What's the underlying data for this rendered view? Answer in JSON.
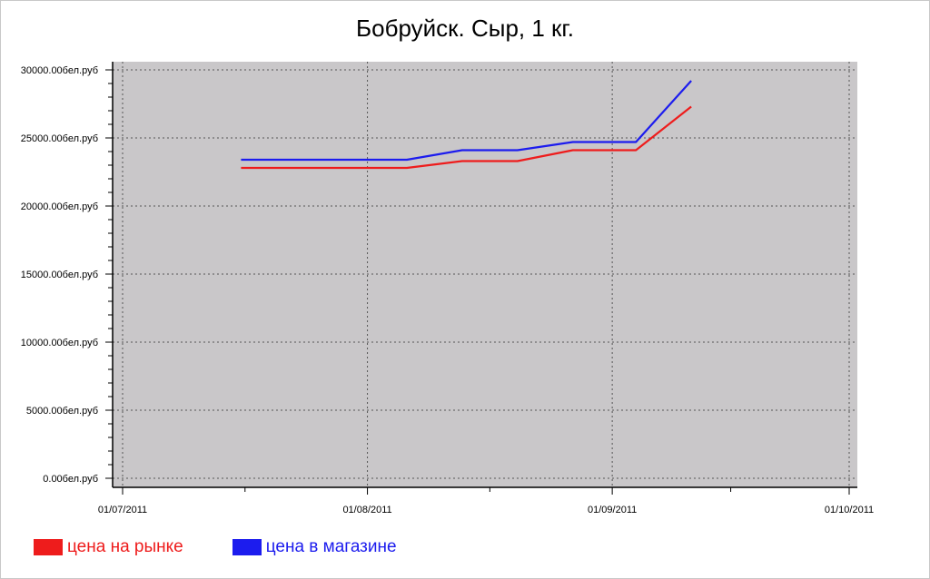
{
  "chart_data": {
    "type": "line",
    "title": "Бобруйск. Сыр, 1 кг.",
    "xlabel": "",
    "ylabel": "",
    "x_range": [
      "2011-07-01",
      "2011-10-01"
    ],
    "ylim": [
      0,
      30000
    ],
    "y_ticks": [
      {
        "value": 0,
        "label": "0.00бел.руб"
      },
      {
        "value": 5000,
        "label": "5000.00бел.руб"
      },
      {
        "value": 10000,
        "label": "10000.00бел.руб"
      },
      {
        "value": 15000,
        "label": "15000.00бел.руб"
      },
      {
        "value": 20000,
        "label": "20000.00бел.руб"
      },
      {
        "value": 25000,
        "label": "25000.00бел.руб"
      },
      {
        "value": 30000,
        "label": "30000.00бел.руб"
      }
    ],
    "x_ticks": [
      {
        "date": "2011-07-01",
        "label": "01/07/2011"
      },
      {
        "date": "2011-08-01",
        "label": "01/08/2011"
      },
      {
        "date": "2011-09-01",
        "label": "01/09/2011"
      },
      {
        "date": "2011-10-01",
        "label": "01/10/2011"
      }
    ],
    "grid": true,
    "legend_position": "bottom-left",
    "plot_background": "#c9c7c9",
    "series": [
      {
        "name": "цена на рынке",
        "color": "#ee1c1c",
        "points": [
          {
            "x": "2011-07-16",
            "y": 22800
          },
          {
            "x": "2011-08-06",
            "y": 22800
          },
          {
            "x": "2011-08-13",
            "y": 23300
          },
          {
            "x": "2011-08-20",
            "y": 23300
          },
          {
            "x": "2011-08-27",
            "y": 24100
          },
          {
            "x": "2011-09-04",
            "y": 24100
          },
          {
            "x": "2011-09-11",
            "y": 27300
          }
        ]
      },
      {
        "name": "цена в магазине",
        "color": "#1c1cee",
        "points": [
          {
            "x": "2011-07-16",
            "y": 23400
          },
          {
            "x": "2011-08-06",
            "y": 23400
          },
          {
            "x": "2011-08-13",
            "y": 24100
          },
          {
            "x": "2011-08-20",
            "y": 24100
          },
          {
            "x": "2011-08-27",
            "y": 24700
          },
          {
            "x": "2011-09-04",
            "y": 24700
          },
          {
            "x": "2011-09-11",
            "y": 29200
          }
        ]
      }
    ]
  }
}
